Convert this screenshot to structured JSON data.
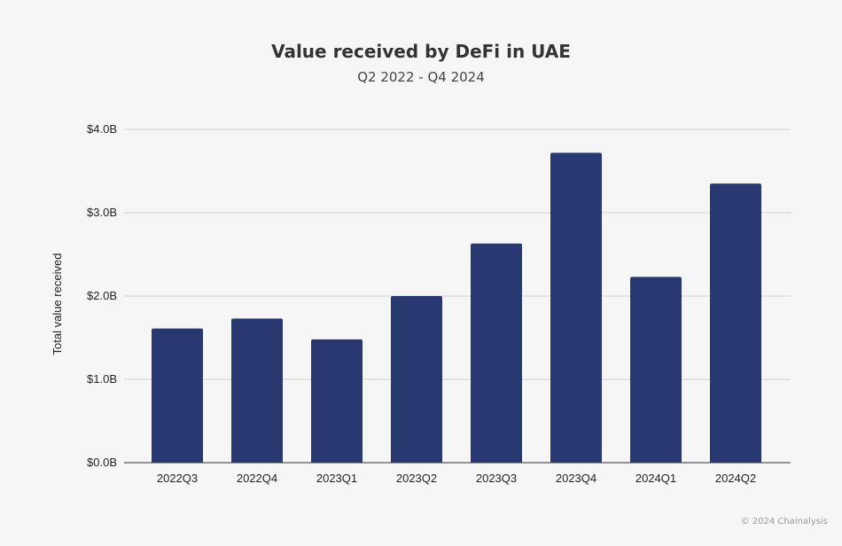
{
  "chart_data": {
    "type": "bar",
    "title": "Value received by DeFi in UAE",
    "subtitle": "Q2 2022 - Q4 2024",
    "xlabel": "",
    "ylabel": "Total value received",
    "categories": [
      "2022Q3",
      "2022Q4",
      "2023Q1",
      "2023Q2",
      "2023Q3",
      "2023Q4",
      "2024Q1",
      "2024Q2"
    ],
    "values": [
      1.61,
      1.73,
      1.48,
      2.0,
      2.63,
      3.72,
      2.23,
      3.35
    ],
    "unit": "billion USD",
    "ylim": [
      0,
      4
    ],
    "yticks": [
      0,
      1,
      2,
      3,
      4
    ],
    "ytick_labels": [
      "$0.0B",
      "$1.0B",
      "$2.0B",
      "$3.0B",
      "$4.0B"
    ],
    "grid": true,
    "bar_color": "#283870"
  },
  "footer": "© 2024 Chainalysis"
}
